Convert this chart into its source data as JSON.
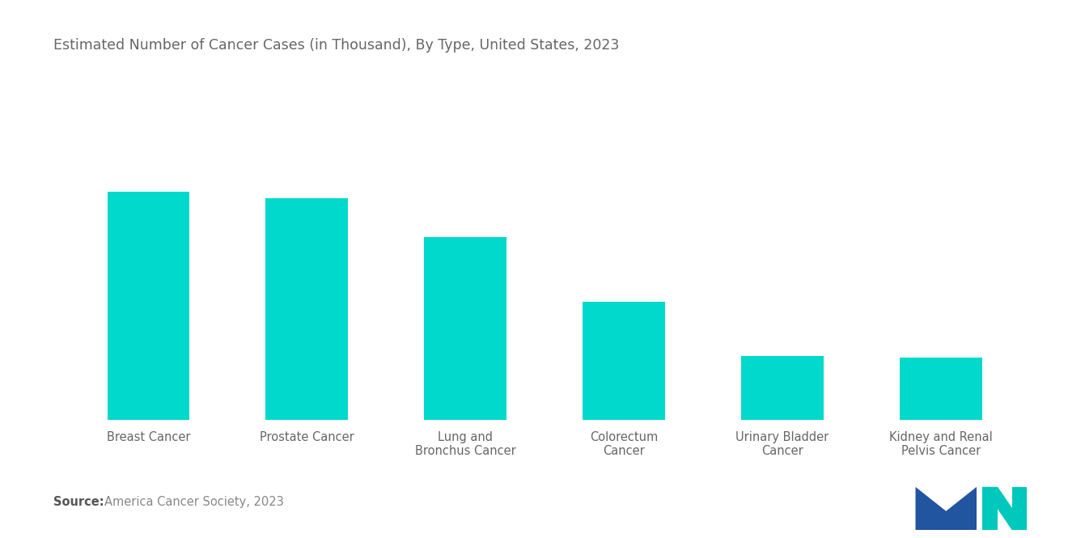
{
  "title": "Estimated Number of Cancer Cases (in Thousand), By Type, United States, 2023",
  "categories": [
    "Breast Cancer",
    "Prostate Cancer",
    "Lung and\nBronchus Cancer",
    "Colorectum\nCancer",
    "Urinary Bladder\nCancer",
    "Kidney and Renal\nPelvis Cancer"
  ],
  "values": [
    297,
    288,
    238,
    153,
    83,
    81
  ],
  "bar_color": "#00D9CC",
  "background_color": "#ffffff",
  "title_color": "#666666",
  "label_color": "#666666",
  "source_bold": "Source:",
  "source_text": "  America Cancer Society, 2023",
  "ylim": [
    0,
    420
  ],
  "bar_width": 0.52,
  "title_fontsize": 12.5,
  "label_fontsize": 10.5,
  "source_fontsize": 10.5
}
